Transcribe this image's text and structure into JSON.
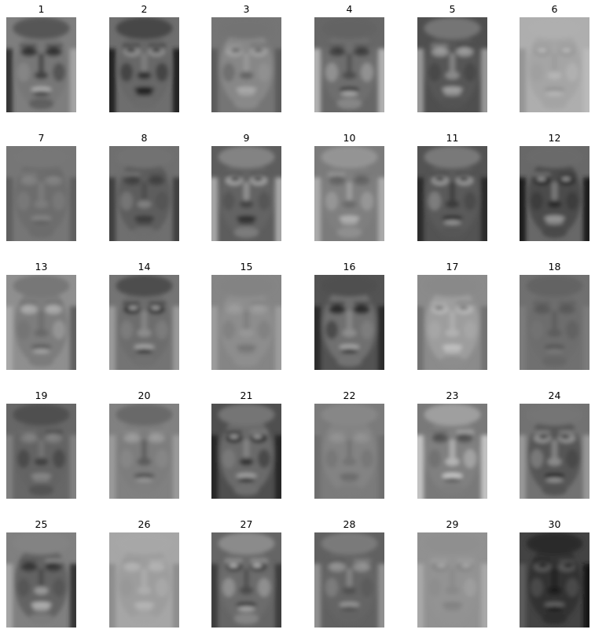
{
  "figure": {
    "rows": 5,
    "columns": 6,
    "colormap": "gray",
    "background": "#ffffff"
  },
  "panels": [
    {
      "title": "1",
      "tone": 108,
      "contrast": "high"
    },
    {
      "title": "2",
      "tone": 92,
      "contrast": "high"
    },
    {
      "title": "3",
      "tone": 128,
      "contrast": "medium"
    },
    {
      "title": "4",
      "tone": 120,
      "contrast": "high"
    },
    {
      "title": "5",
      "tone": 96,
      "contrast": "high"
    },
    {
      "title": "6",
      "tone": 168,
      "contrast": "low"
    },
    {
      "title": "7",
      "tone": 112,
      "contrast": "low"
    },
    {
      "title": "8",
      "tone": 100,
      "contrast": "medium"
    },
    {
      "title": "9",
      "tone": 110,
      "contrast": "high"
    },
    {
      "title": "10",
      "tone": 134,
      "contrast": "medium"
    },
    {
      "title": "11",
      "tone": 100,
      "contrast": "high"
    },
    {
      "title": "12",
      "tone": 86,
      "contrast": "high"
    },
    {
      "title": "13",
      "tone": 132,
      "contrast": "medium"
    },
    {
      "title": "14",
      "tone": 98,
      "contrast": "high"
    },
    {
      "title": "15",
      "tone": 138,
      "contrast": "low"
    },
    {
      "title": "16",
      "tone": 100,
      "contrast": "high"
    },
    {
      "title": "17",
      "tone": 150,
      "contrast": "medium"
    },
    {
      "title": "18",
      "tone": 106,
      "contrast": "low"
    },
    {
      "title": "19",
      "tone": 92,
      "contrast": "medium"
    },
    {
      "title": "20",
      "tone": 118,
      "contrast": "medium"
    },
    {
      "title": "21",
      "tone": 96,
      "contrast": "high"
    },
    {
      "title": "22",
      "tone": 128,
      "contrast": "low"
    },
    {
      "title": "23",
      "tone": 138,
      "contrast": "high"
    },
    {
      "title": "24",
      "tone": 96,
      "contrast": "high"
    },
    {
      "title": "25",
      "tone": 110,
      "contrast": "high"
    },
    {
      "title": "26",
      "tone": 160,
      "contrast": "low"
    },
    {
      "title": "27",
      "tone": 118,
      "contrast": "high"
    },
    {
      "title": "28",
      "tone": 108,
      "contrast": "medium"
    },
    {
      "title": "29",
      "tone": 150,
      "contrast": "low"
    },
    {
      "title": "30",
      "tone": 56,
      "contrast": "medium"
    }
  ]
}
